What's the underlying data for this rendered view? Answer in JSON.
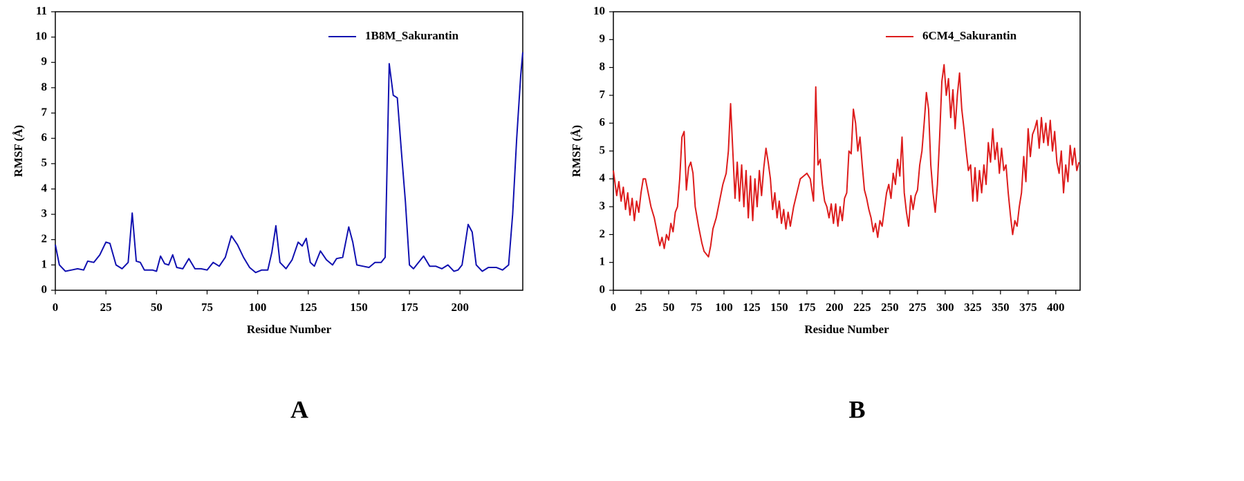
{
  "chart_data": [
    {
      "type": "line",
      "panel_label": "A",
      "xlabel": "Residue Number",
      "ylabel": "RMSF (Å)",
      "legend": "upper right",
      "xlim": [
        0,
        231
      ],
      "ylim": [
        0,
        11
      ],
      "xticks": [
        0,
        25,
        50,
        75,
        100,
        125,
        150,
        175,
        200
      ],
      "yticks": [
        0,
        1,
        2,
        3,
        4,
        5,
        6,
        7,
        8,
        9,
        10,
        11
      ],
      "x": [
        0,
        2,
        5,
        8,
        11,
        14,
        16,
        19,
        22,
        25,
        27,
        30,
        33,
        36,
        38,
        40,
        42,
        44,
        48,
        50,
        52,
        54,
        56,
        58,
        60,
        63,
        66,
        69,
        72,
        75,
        78,
        81,
        84,
        87,
        90,
        93,
        96,
        99,
        102,
        105,
        107,
        109,
        111,
        114,
        117,
        120,
        122,
        124,
        126,
        128,
        131,
        134,
        137,
        139,
        142,
        145,
        147,
        149,
        152,
        155,
        158,
        161,
        163,
        165,
        167,
        169,
        171,
        173,
        175,
        177,
        182,
        185,
        188,
        191,
        194,
        197,
        199,
        201,
        204,
        206,
        208,
        211,
        214,
        218,
        221,
        224,
        226,
        228,
        230,
        231
      ],
      "series": [
        {
          "name": "1B8M_Sakurantin",
          "color": "#1010b0",
          "values": [
            1.8,
            1.0,
            0.75,
            0.8,
            0.85,
            0.8,
            1.15,
            1.1,
            1.4,
            1.9,
            1.85,
            1.0,
            0.85,
            1.1,
            3.05,
            1.15,
            1.1,
            0.8,
            0.8,
            0.75,
            1.35,
            1.05,
            1.0,
            1.4,
            0.9,
            0.85,
            1.25,
            0.85,
            0.85,
            0.8,
            1.1,
            0.95,
            1.3,
            2.15,
            1.8,
            1.3,
            0.9,
            0.7,
            0.8,
            0.8,
            1.5,
            2.55,
            1.1,
            0.85,
            1.2,
            1.9,
            1.75,
            2.05,
            1.1,
            0.95,
            1.55,
            1.2,
            1.0,
            1.25,
            1.3,
            2.5,
            1.9,
            1.0,
            0.95,
            0.9,
            1.1,
            1.1,
            1.3,
            8.95,
            7.7,
            7.6,
            5.5,
            3.5,
            1.0,
            0.85,
            1.35,
            0.95,
            0.95,
            0.85,
            1.0,
            0.75,
            0.8,
            1.0,
            2.6,
            2.3,
            1.0,
            0.75,
            0.9,
            0.9,
            0.8,
            1.0,
            3.0,
            6.0,
            8.5,
            9.4
          ]
        }
      ]
    },
    {
      "type": "line",
      "panel_label": "B",
      "xlabel": "Residue Number",
      "ylabel": "RMSF (Å)",
      "legend": "upper right",
      "xlim": [
        0,
        422
      ],
      "ylim": [
        0,
        10
      ],
      "xticks": [
        0,
        25,
        50,
        75,
        100,
        125,
        150,
        175,
        200,
        225,
        250,
        275,
        300,
        325,
        350,
        375,
        400
      ],
      "yticks": [
        0,
        1,
        2,
        3,
        4,
        5,
        6,
        7,
        8,
        9,
        10
      ],
      "x": [
        0,
        3,
        5,
        7,
        9,
        11,
        13,
        15,
        17,
        19,
        21,
        23,
        25,
        27,
        29,
        31,
        34,
        37,
        40,
        42,
        44,
        46,
        48,
        50,
        52,
        54,
        56,
        58,
        60,
        62,
        64,
        66,
        68,
        70,
        72,
        74,
        77,
        80,
        82,
        84,
        86,
        88,
        90,
        93,
        96,
        99,
        102,
        104,
        106,
        108,
        110,
        112,
        114,
        116,
        118,
        120,
        122,
        124,
        126,
        128,
        130,
        132,
        134,
        136,
        138,
        140,
        142,
        144,
        146,
        148,
        150,
        152,
        154,
        156,
        158,
        160,
        163,
        166,
        169,
        172,
        175,
        178,
        181,
        183,
        185,
        187,
        189,
        191,
        193,
        195,
        197,
        199,
        201,
        203,
        205,
        207,
        209,
        211,
        213,
        215,
        217,
        219,
        221,
        223,
        225,
        227,
        229,
        231,
        233,
        235,
        237,
        239,
        241,
        243,
        245,
        247,
        249,
        251,
        253,
        255,
        257,
        259,
        261,
        263,
        265,
        267,
        269,
        271,
        273,
        275,
        277,
        279,
        281,
        283,
        285,
        287,
        289,
        291,
        293,
        295,
        297,
        299,
        301,
        303,
        305,
        307,
        309,
        311,
        313,
        315,
        317,
        319,
        321,
        323,
        325,
        327,
        329,
        331,
        333,
        335,
        337,
        339,
        341,
        343,
        345,
        347,
        349,
        351,
        353,
        355,
        357,
        359,
        361,
        363,
        365,
        367,
        369,
        371,
        373,
        375,
        377,
        379,
        381,
        383,
        385,
        387,
        389,
        391,
        393,
        395,
        397,
        399,
        401,
        403,
        405,
        407,
        409,
        411,
        413,
        415,
        417,
        419,
        421
      ],
      "series": [
        {
          "name": "6CM4_Sakurantin",
          "color": "#dd1c1c",
          "values": [
            4.3,
            3.4,
            3.9,
            3.2,
            3.7,
            2.9,
            3.5,
            2.7,
            3.3,
            2.5,
            3.2,
            2.8,
            3.5,
            4.0,
            4.0,
            3.6,
            3.0,
            2.6,
            2.0,
            1.6,
            1.9,
            1.5,
            2.0,
            1.8,
            2.4,
            2.1,
            2.8,
            3.0,
            4.0,
            5.5,
            5.7,
            3.6,
            4.4,
            4.6,
            4.2,
            3.0,
            2.3,
            1.7,
            1.4,
            1.3,
            1.2,
            1.6,
            2.2,
            2.6,
            3.2,
            3.8,
            4.2,
            5.0,
            6.7,
            5.0,
            3.3,
            4.6,
            3.2,
            4.5,
            3.0,
            4.3,
            2.6,
            4.1,
            2.5,
            4.0,
            3.0,
            4.3,
            3.4,
            4.4,
            5.1,
            4.6,
            4.0,
            2.9,
            3.5,
            2.6,
            3.2,
            2.4,
            2.9,
            2.2,
            2.8,
            2.3,
            3.0,
            3.5,
            4.0,
            4.1,
            4.2,
            4.0,
            3.2,
            7.3,
            4.5,
            4.7,
            3.8,
            3.2,
            3.0,
            2.6,
            3.1,
            2.4,
            3.1,
            2.3,
            3.0,
            2.5,
            3.3,
            3.5,
            5.0,
            4.9,
            6.5,
            6.0,
            5.0,
            5.5,
            4.5,
            3.6,
            3.3,
            2.9,
            2.6,
            2.1,
            2.4,
            1.9,
            2.5,
            2.3,
            2.9,
            3.5,
            3.8,
            3.3,
            4.2,
            3.8,
            4.7,
            4.1,
            5.5,
            3.5,
            2.8,
            2.3,
            3.4,
            2.9,
            3.4,
            3.6,
            4.5,
            5.0,
            6.0,
            7.1,
            6.5,
            4.5,
            3.5,
            2.8,
            3.8,
            5.5,
            7.5,
            8.1,
            7.0,
            7.6,
            6.2,
            7.2,
            5.8,
            7.0,
            7.8,
            6.5,
            5.8,
            5.0,
            4.3,
            4.5,
            3.2,
            4.4,
            3.2,
            4.3,
            3.5,
            4.5,
            3.8,
            5.3,
            4.6,
            5.8,
            4.7,
            5.3,
            4.2,
            5.1,
            4.3,
            4.5,
            3.5,
            2.7,
            2.0,
            2.5,
            2.3,
            3.0,
            3.5,
            4.8,
            3.9,
            5.8,
            4.8,
            5.6,
            5.8,
            6.1,
            5.1,
            6.2,
            5.3,
            6.0,
            5.2,
            6.1,
            5.0,
            5.7,
            4.6,
            4.2,
            5.0,
            3.5,
            4.5,
            3.9,
            5.2,
            4.5,
            5.1,
            4.3,
            4.6
          ]
        }
      ]
    }
  ]
}
